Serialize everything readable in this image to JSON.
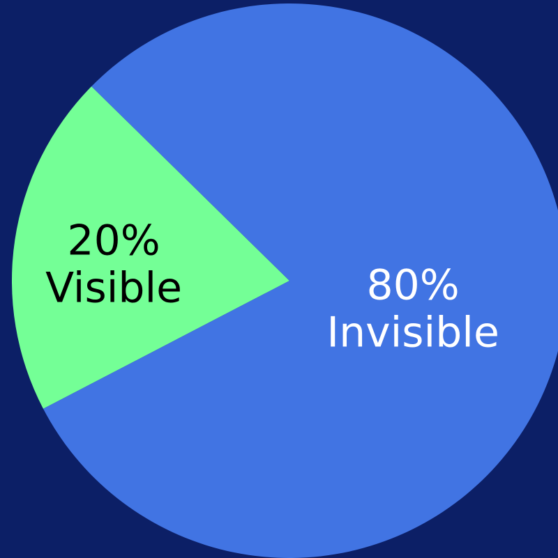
{
  "chart_data": {
    "type": "pie",
    "slices": [
      {
        "label": "Visible",
        "value": 20,
        "value_text": "20%",
        "color": "#74FF96",
        "text_color": "#000000"
      },
      {
        "label": "Invisible",
        "value": 80,
        "value_text": "80%",
        "color": "#4174E3",
        "text_color": "#FFFFFF"
      }
    ]
  },
  "theme": {
    "background": "#0C1F66"
  }
}
